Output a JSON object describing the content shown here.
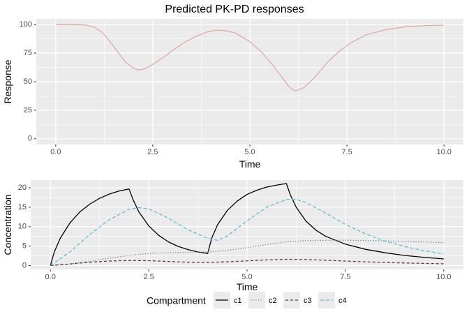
{
  "title": "Predicted PK-PD responses",
  "chart_data": [
    {
      "type": "line",
      "xlabel": "Time",
      "ylabel": "Response",
      "xlim": [
        -0.5,
        10.5
      ],
      "ylim": [
        -5,
        105
      ],
      "xticks": [
        "0.0",
        "2.5",
        "5.0",
        "7.5",
        "10.0"
      ],
      "xtick_values": [
        0,
        2.5,
        5,
        7.5,
        10
      ],
      "yticks": [
        "0",
        "25",
        "50",
        "75",
        "100"
      ],
      "ytick_values": [
        0,
        25,
        50,
        75,
        100
      ],
      "grid": true,
      "series": [
        {
          "color": "#e0aaa8",
          "dash": "solid",
          "x": [
            0,
            0.5,
            0.8,
            1.0,
            1.2,
            1.4,
            1.6,
            1.8,
            2.0,
            2.1,
            2.2,
            2.3,
            2.5,
            2.8,
            3.0,
            3.3,
            3.6,
            3.9,
            4.1,
            4.3,
            4.6,
            5.0,
            5.3,
            5.6,
            5.8,
            6.0,
            6.1,
            6.2,
            6.4,
            6.7,
            7.0,
            7.3,
            7.6,
            8.0,
            8.5,
            9.0,
            9.5,
            10.0
          ],
          "y": [
            100,
            100,
            99.5,
            97.5,
            93,
            85,
            76,
            67,
            62,
            60.5,
            60.5,
            61.5,
            65,
            72,
            77,
            84,
            89.5,
            93.5,
            95,
            95,
            93,
            85,
            76,
            64,
            55,
            46,
            43,
            42,
            45,
            55,
            67,
            76.5,
            84,
            91,
            95.5,
            98,
            99,
            99.5
          ]
        }
      ]
    },
    {
      "type": "line",
      "xlabel": "Time",
      "ylabel": "Concentration",
      "xlim": [
        -0.5,
        10.5
      ],
      "ylim": [
        -1,
        22
      ],
      "xticks": [
        "0.0",
        "2.5",
        "5.0",
        "7.5",
        "10.0"
      ],
      "xtick_values": [
        0,
        2.5,
        5,
        7.5,
        10
      ],
      "yticks": [
        "0",
        "5",
        "10",
        "15",
        "20"
      ],
      "ytick_values": [
        0,
        5,
        10,
        15,
        20
      ],
      "grid": true,
      "series": [
        {
          "name": "c1",
          "color": "#000000",
          "dash": "solid",
          "x": [
            0,
            0.1,
            0.25,
            0.5,
            0.75,
            1.0,
            1.25,
            1.5,
            1.75,
            2.0,
            2.1,
            2.25,
            2.5,
            2.75,
            3.0,
            3.25,
            3.5,
            3.75,
            4.0,
            4.1,
            4.25,
            4.5,
            4.75,
            5.0,
            5.25,
            5.5,
            5.75,
            6.0,
            6.1,
            6.25,
            6.5,
            6.75,
            7.0,
            7.5,
            8.0,
            8.5,
            9.0,
            9.5,
            10.0
          ],
          "y": [
            0,
            3.5,
            7,
            11,
            13.8,
            15.8,
            17.3,
            18.4,
            19.2,
            19.7,
            17,
            13.8,
            10.2,
            7.8,
            6.1,
            4.9,
            4.1,
            3.5,
            3.1,
            7,
            10.5,
            14.2,
            16.6,
            18.3,
            19.4,
            20.2,
            20.7,
            21.1,
            18.2,
            15,
            11.4,
            9.1,
            7.5,
            5.5,
            4.2,
            3.3,
            2.6,
            2.1,
            1.7
          ]
        },
        {
          "name": "c2",
          "color": "#6f7e95",
          "dash": "dotted",
          "x": [
            0,
            0.5,
            1.0,
            1.5,
            2.0,
            2.5,
            3.0,
            3.5,
            4.0,
            4.5,
            5.0,
            5.5,
            6.0,
            6.5,
            7.0,
            7.5,
            8.0,
            8.5,
            9.0,
            9.5,
            10.0
          ],
          "y": [
            0,
            0.4,
            1.1,
            1.9,
            2.6,
            3.1,
            3.3,
            3.4,
            3.5,
            3.9,
            4.6,
            5.4,
            6.1,
            6.4,
            6.5,
            6.5,
            6.45,
            6.35,
            6.2,
            6.05,
            5.9
          ]
        },
        {
          "name": "c3",
          "color": "#5c3a40",
          "dash": "dashed",
          "x": [
            0,
            0.5,
            1.0,
            1.5,
            2.0,
            2.5,
            3.0,
            3.5,
            4.0,
            4.5,
            5.0,
            5.5,
            6.0,
            6.5,
            7.0,
            7.5,
            8.0,
            8.5,
            9.0,
            9.5,
            10.0
          ],
          "y": [
            0,
            0.4,
            0.85,
            1.15,
            1.3,
            1.25,
            1.05,
            0.85,
            0.8,
            0.95,
            1.2,
            1.45,
            1.6,
            1.55,
            1.35,
            1.15,
            0.95,
            0.8,
            0.65,
            0.55,
            0.45
          ]
        },
        {
          "name": "c4",
          "color": "#5bc1d1",
          "dash": "longdash",
          "x": [
            0,
            0.5,
            1.0,
            1.5,
            2.0,
            2.25,
            2.5,
            3.0,
            3.5,
            4.0,
            4.25,
            4.5,
            5.0,
            5.5,
            6.0,
            6.25,
            6.5,
            7.0,
            7.5,
            8.0,
            8.5,
            9.0,
            9.5,
            10.0
          ],
          "y": [
            0,
            3.5,
            8.0,
            11.8,
            14.5,
            14.9,
            14.6,
            12.2,
            9.2,
            7.0,
            6.5,
            7.6,
            11.5,
            15.0,
            17.0,
            17.0,
            16.2,
            13.5,
            10.6,
            8.2,
            6.3,
            4.9,
            3.8,
            3.0
          ]
        }
      ]
    }
  ],
  "legend": {
    "title": "Compartment",
    "entries": [
      "c1",
      "c2",
      "c3",
      "c4"
    ],
    "placement": "bottom"
  }
}
